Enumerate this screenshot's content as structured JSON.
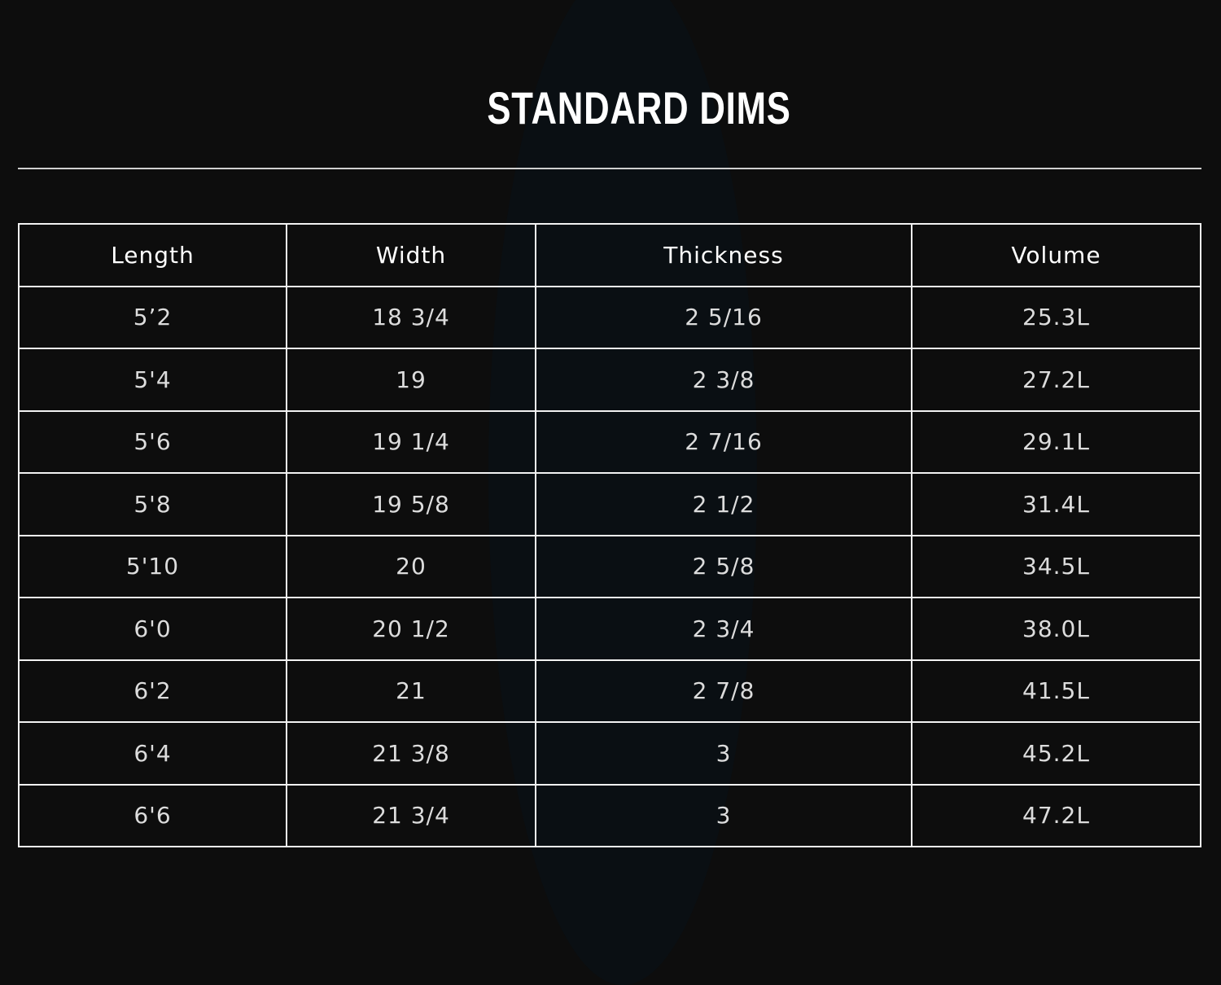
{
  "title": "STANDARD DIMS",
  "table": {
    "headers": [
      "Length",
      "Width",
      "Thickness",
      "Volume"
    ],
    "rows": [
      [
        "5’2",
        "18 3/4",
        "2 5/16",
        "25.3L"
      ],
      [
        "5'4",
        "19",
        "2 3/8",
        "27.2L"
      ],
      [
        "5'6",
        "19 1/4",
        "2 7/16",
        "29.1L"
      ],
      [
        "5'8",
        "19 5/8",
        "2 1/2",
        "31.4L"
      ],
      [
        "5'10",
        "20",
        "2 5/8",
        "34.5L"
      ],
      [
        "6'0",
        "20 1/2",
        "2 3/4",
        "38.0L"
      ],
      [
        "6'2",
        "21",
        "2 7/8",
        "41.5L"
      ],
      [
        "6'4",
        "21 3/8",
        "3",
        "45.2L"
      ],
      [
        "6'6",
        "21 3/4",
        "3",
        "47.2L"
      ]
    ]
  }
}
